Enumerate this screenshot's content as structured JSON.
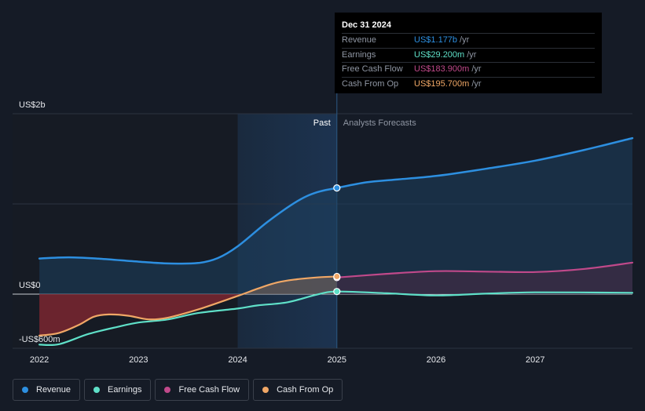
{
  "colors": {
    "revenue": "#2d8fe0",
    "earnings": "#5fe0c8",
    "free_cash_flow": "#c0498a",
    "cash_from_op": "#f0a766",
    "background": "#151b26",
    "negative_fill": "#7a2630"
  },
  "tooltip": {
    "date": "Dec 31 2024",
    "rows": [
      {
        "name": "Revenue",
        "value": "US$1.177b",
        "unit": "/yr",
        "color": "#2d8fe0"
      },
      {
        "name": "Earnings",
        "value": "US$29.200m",
        "unit": "/yr",
        "color": "#5fe0c8"
      },
      {
        "name": "Free Cash Flow",
        "value": "US$183.900m",
        "unit": "/yr",
        "color": "#c0498a"
      },
      {
        "name": "Cash From Op",
        "value": "US$195.700m",
        "unit": "/yr",
        "color": "#f0a766"
      }
    ]
  },
  "legend": [
    {
      "label": "Revenue",
      "color": "#2d8fe0"
    },
    {
      "label": "Earnings",
      "color": "#5fe0c8"
    },
    {
      "label": "Free Cash Flow",
      "color": "#c0498a"
    },
    {
      "label": "Cash From Op",
      "color": "#f0a766"
    }
  ],
  "chart_data": {
    "type": "line",
    "y_axis_labels": [
      "US$2b",
      "US$0",
      "-US$600m"
    ],
    "x_tick_labels": [
      "2022",
      "2023",
      "2024",
      "2025",
      "2026",
      "2027"
    ],
    "region_labels": {
      "past": "Past",
      "forecast": "Analysts Forecasts"
    },
    "past_end": 2025.0,
    "ylim": [
      -600,
      2000
    ],
    "xlim": [
      2021.73,
      2027.98
    ],
    "highlight_start": 2024.0,
    "grid": true,
    "legend_position": "bottom",
    "series": [
      {
        "name": "Revenue",
        "key": "revenue",
        "points": [
          [
            2022.0,
            395
          ],
          [
            2022.3,
            408
          ],
          [
            2022.6,
            393
          ],
          [
            2023.0,
            360
          ],
          [
            2023.3,
            340
          ],
          [
            2023.6,
            345
          ],
          [
            2023.8,
            400
          ],
          [
            2024.0,
            530
          ],
          [
            2024.3,
            800
          ],
          [
            2024.6,
            1030
          ],
          [
            2024.8,
            1130
          ],
          [
            2025.0,
            1177
          ],
          [
            2025.3,
            1240
          ],
          [
            2025.6,
            1270
          ],
          [
            2026.0,
            1310
          ],
          [
            2026.5,
            1390
          ],
          [
            2027.0,
            1480
          ],
          [
            2027.5,
            1600
          ],
          [
            2027.98,
            1730
          ]
        ]
      },
      {
        "name": "Earnings",
        "key": "earnings",
        "points": [
          [
            2022.0,
            -560
          ],
          [
            2022.2,
            -555
          ],
          [
            2022.5,
            -440
          ],
          [
            2022.8,
            -360
          ],
          [
            2023.0,
            -315
          ],
          [
            2023.3,
            -280
          ],
          [
            2023.6,
            -210
          ],
          [
            2024.0,
            -160
          ],
          [
            2024.2,
            -125
          ],
          [
            2024.5,
            -90
          ],
          [
            2024.8,
            -5
          ],
          [
            2025.0,
            29
          ],
          [
            2025.5,
            10
          ],
          [
            2026.0,
            -15
          ],
          [
            2026.5,
            5
          ],
          [
            2027.0,
            20
          ],
          [
            2027.98,
            15
          ]
        ]
      },
      {
        "name": "Free Cash Flow",
        "key": "free_cash_flow",
        "points": [
          [
            2025.0,
            184
          ],
          [
            2025.5,
            225
          ],
          [
            2026.0,
            255
          ],
          [
            2026.5,
            250
          ],
          [
            2027.0,
            245
          ],
          [
            2027.5,
            280
          ],
          [
            2027.98,
            350
          ]
        ]
      },
      {
        "name": "Cash From Op",
        "key": "cash_from_op",
        "points": [
          [
            2022.0,
            -460
          ],
          [
            2022.2,
            -430
          ],
          [
            2022.4,
            -340
          ],
          [
            2022.55,
            -250
          ],
          [
            2022.7,
            -225
          ],
          [
            2022.9,
            -240
          ],
          [
            2023.1,
            -280
          ],
          [
            2023.3,
            -260
          ],
          [
            2023.6,
            -170
          ],
          [
            2024.0,
            -20
          ],
          [
            2024.2,
            60
          ],
          [
            2024.4,
            130
          ],
          [
            2024.6,
            165
          ],
          [
            2024.8,
            185
          ],
          [
            2025.0,
            196
          ]
        ]
      }
    ]
  }
}
